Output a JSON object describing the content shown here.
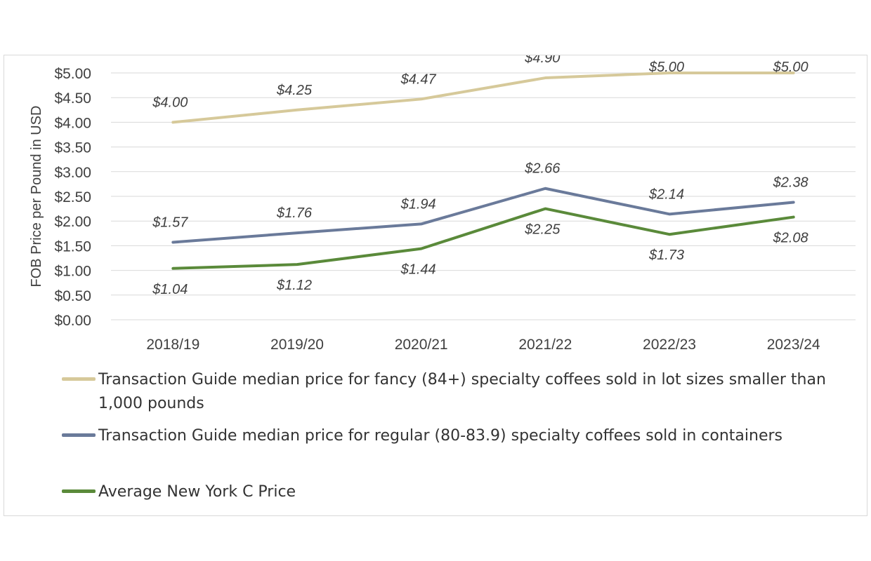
{
  "chart_data": {
    "type": "line",
    "categories": [
      "2018/19",
      "2019/20",
      "2020/21",
      "2021/22",
      "2022/23",
      "2023/24"
    ],
    "ylabel": "FOB Price per Pound in USD",
    "xlabel": "",
    "ylim": [
      0,
      5
    ],
    "yticks": [
      "$0.00",
      "$0.50",
      "$1.00",
      "$1.50",
      "$2.00",
      "$2.50",
      "$3.00",
      "$3.50",
      "$4.00",
      "$4.50",
      "$5.00"
    ],
    "grid": true,
    "legend_position": "bottom",
    "series": [
      {
        "name": "Transaction Guide median price  for fancy (84+) specialty coffees sold in lot sizes smaller than 1,000 pounds",
        "values": [
          4.0,
          4.25,
          4.47,
          4.9,
          5.0,
          5.0
        ],
        "labels": [
          "$4.00",
          "$4.25",
          "$4.47",
          "$4.90",
          "$5.00",
          "$5.00"
        ],
        "color": "#d6c99a"
      },
      {
        "name": "Transaction Guide median price for regular (80-83.9) specialty coffees sold in containers",
        "values": [
          1.57,
          1.76,
          1.94,
          2.66,
          2.14,
          2.38
        ],
        "labels": [
          "$1.57",
          "$1.76",
          "$1.94",
          "$2.66",
          "$2.14",
          "$2.38"
        ],
        "color": "#6a7a9a"
      },
      {
        "name": "Average New York C Price",
        "values": [
          1.04,
          1.12,
          1.44,
          2.25,
          1.73,
          2.08
        ],
        "labels": [
          "$1.04",
          "$1.12",
          "$1.44",
          "$2.25",
          "$1.73",
          "$2.08"
        ],
        "color": "#5a8a3a"
      }
    ]
  }
}
